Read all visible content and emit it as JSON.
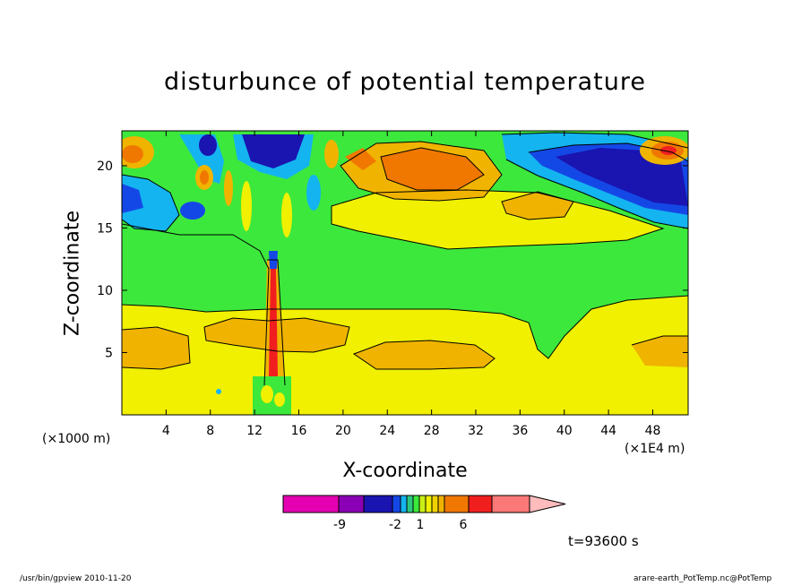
{
  "chart_data": {
    "type": "heatmap",
    "title": "disturbunce of potential temperature",
    "xlabel": "X-coordinate",
    "ylabel": "Z-coordinate",
    "x_unit_left": "(×1000 m)",
    "x_unit_right": "(×1E4 m)",
    "xlim": [
      0,
      51.2
    ],
    "ylim": [
      0,
      22.8
    ],
    "x_ticks": [
      4,
      8,
      12,
      16,
      20,
      24,
      28,
      32,
      36,
      40,
      44,
      48
    ],
    "y_ticks": [
      5,
      10,
      15,
      20
    ],
    "time_label": "t=93600 s",
    "colorbar": {
      "colors": [
        "#e400b0",
        "#8a00b4",
        "#1a14b0",
        "#1448e6",
        "#14b4f0",
        "#2cc880",
        "#3ce83c",
        "#c8f014",
        "#f0f000",
        "#f0d200",
        "#f0b400",
        "#f07800",
        "#f01e1e",
        "#fa7878",
        "#ffbcbc"
      ],
      "labels": [
        "-9",
        "-2",
        "1",
        "6"
      ]
    }
  },
  "footer": {
    "left": "/usr/bin/gpview   2010-11-20",
    "right": "arare-earth_PotTemp.nc@PotTemp"
  }
}
